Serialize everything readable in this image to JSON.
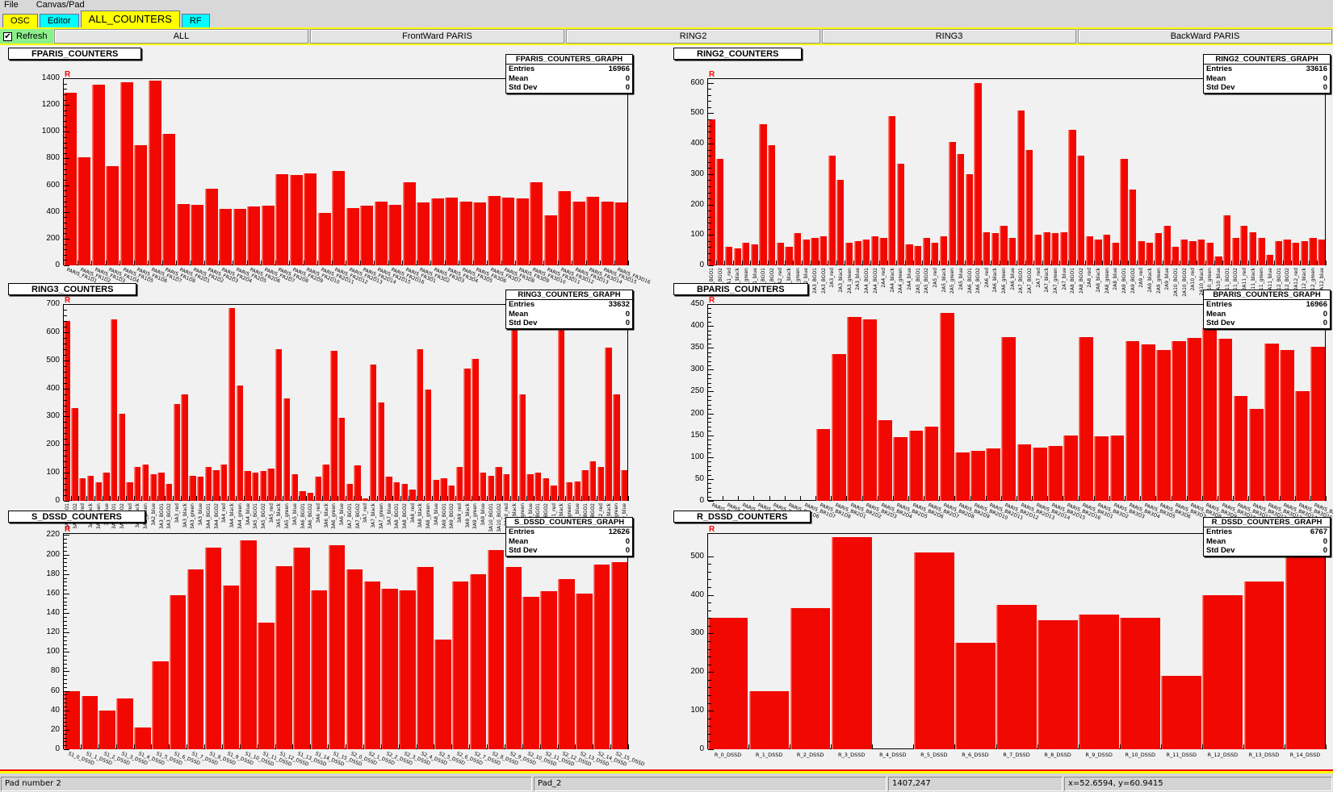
{
  "menu": {
    "items": [
      "File",
      "Canvas/Pad"
    ]
  },
  "tabs": [
    {
      "label": "OSC",
      "color": "#ffff00",
      "active": false
    },
    {
      "label": "Editor",
      "color": "#00ffff",
      "active": false
    },
    {
      "label": "ALL_COUNTERS",
      "color": "#ffff00",
      "active": true
    },
    {
      "label": "RF",
      "color": "#00ffff",
      "active": false
    }
  ],
  "toolbar": {
    "refresh_label": "Refresh",
    "refresh_checked": true,
    "buttons": [
      "ALL",
      "FrontWard PARIS",
      "RING2",
      "RING3",
      "BackWard PARIS"
    ]
  },
  "statusbar": {
    "cells": [
      "Pad number 2",
      "Pad_2",
      "1407,247",
      "x=52.6594, y=60.9415"
    ]
  },
  "colors": {
    "bar": "#f10800",
    "bar_highlight": "#ff7a70",
    "tab_yellow": "#ffff00",
    "tab_cyan": "#00ffff",
    "refresh_green": "#8cf08c",
    "pad_highlight_red": "#ff0000",
    "canvas_highlight_yellow": "#ffff00",
    "canvas_bg": "#f1f1f1"
  },
  "chart_data": [
    {
      "type": "bar",
      "title": "FPARIS_COUNTERS",
      "stats": {
        "title": "FPARIS_COUNTERS_GRAPH",
        "entries_label": "Entries",
        "entries": "16966",
        "mean_label": "Mean",
        "mean": "0",
        "stddev_label": "Std Dev",
        "stddev": "0"
      },
      "ylim": [
        0,
        1400
      ],
      "ytick_step": 200,
      "ytick_max": 1400,
      "ymax": 1400,
      "label_style": "slant",
      "grid": false,
      "categories": [
        "PARIS_FR1D1",
        "PARIS_FR1D2",
        "PARIS_FR1D3",
        "PARIS_FR1D4",
        "PARIS_FR1D5",
        "PARIS_FR1D6",
        "PARIS_FR1D7",
        "PARIS_FR1D8",
        "PARIS_FR2D1",
        "PARIS_FR2D2",
        "PARIS_FR2D3",
        "PARIS_FR2D4",
        "PARIS_FR2D5",
        "PARIS_FR2D6",
        "PARIS_FR2D7",
        "PARIS_FR2D8",
        "PARIS_FR2D9",
        "PARIS_FR2D10",
        "PARIS_FR2D11",
        "PARIS_FR2D12",
        "PARIS_FR2D13",
        "PARIS_FR2D14",
        "PARIS_FR2D15",
        "PARIS_FR2D16",
        "PARIS_FR3D1",
        "PARIS_FR3D2",
        "PARIS_FR3D3",
        "PARIS_FR3D4",
        "PARIS_FR3D5",
        "PARIS_FR3D6",
        "PARIS_FR3D7",
        "PARIS_FR3D8",
        "PARIS_FR3D9",
        "PARIS_FR3D10",
        "PARIS_FR3D11",
        "PARIS_FR3D12",
        "PARIS_FR3D13",
        "PARIS_FR3D14",
        "PARIS_FR3D15",
        "PARIS_FR3D16"
      ],
      "values": [
        1290,
        810,
        1350,
        745,
        1370,
        900,
        1380,
        985,
        460,
        450,
        575,
        420,
        425,
        440,
        445,
        680,
        675,
        690,
        390,
        705,
        430,
        445,
        475,
        450,
        620,
        470,
        500,
        505,
        480,
        470,
        520,
        510,
        500,
        620,
        375,
        555,
        480,
        515,
        475,
        470
      ]
    },
    {
      "type": "bar",
      "title": "RING2_COUNTERS",
      "stats": {
        "title": "RING2_COUNTERS_GRAPH",
        "entries_label": "Entries",
        "entries": "33616",
        "mean_label": "Mean",
        "mean": "0",
        "stddev_label": "Std Dev",
        "stddev": "0"
      },
      "ylim": [
        0,
        600
      ],
      "ytick_step": 100,
      "ytick_max": 600,
      "ymax": 615,
      "label_style": "vertical",
      "grid": false,
      "categories": [
        "2A1_BGO1",
        "2A1_BGO2",
        "2A1_red",
        "2A1_black",
        "2A1_green",
        "2A1_blue",
        "2A2_BGO1",
        "2A2_BGO2",
        "2A2_red",
        "2A2_black",
        "2A2_green",
        "2A2_blue",
        "2A3_BGO1",
        "2A3_BGO2",
        "2A3_red",
        "2A3_black",
        "2A3_green",
        "2A3_blue",
        "2A4_BGO1",
        "2A4_BGO2",
        "2A4_red",
        "2A4_black",
        "2A4_green",
        "2A4_blue",
        "2A5_BGO1",
        "2A5_BGO2",
        "2A5_red",
        "2A5_black",
        "2A5_green",
        "2A5_blue",
        "2A6_BGO1",
        "2A6_BGO2",
        "2A6_red",
        "2A6_black",
        "2A6_green",
        "2A6_blue",
        "2A7_BGO1",
        "2A7_BGO2",
        "2A7_red",
        "2A7_black",
        "2A7_green",
        "2A7_blue",
        "2A8_BGO1",
        "2A8_BGO2",
        "2A8_red",
        "2A8_black",
        "2A8_green",
        "2A8_blue",
        "2A9_BGO1",
        "2A9_BGO2",
        "2A9_red",
        "2A9_black",
        "2A9_green",
        "2A9_blue",
        "2A10_BGO1",
        "2A10_BGO2",
        "2A10_red",
        "2A10_black",
        "2A10_green",
        "2A10_blue",
        "2A11_BGO1",
        "2A11_BGO2",
        "2A11_red",
        "2A11_black",
        "2A11_green",
        "2A11_blue",
        "2A12_BGO1",
        "2A12_BGO2",
        "2A12_red",
        "2A12_black",
        "2A12_green",
        "2A12_blue"
      ],
      "values": [
        480,
        350,
        60,
        55,
        75,
        70,
        465,
        395,
        75,
        60,
        105,
        85,
        90,
        95,
        360,
        280,
        75,
        80,
        85,
        95,
        90,
        490,
        335,
        70,
        65,
        90,
        75,
        95,
        405,
        365,
        300,
        600,
        110,
        105,
        130,
        90,
        510,
        380,
        100,
        110,
        105,
        110,
        445,
        360,
        95,
        85,
        100,
        75,
        350,
        250,
        80,
        75,
        105,
        130,
        60,
        85,
        80,
        85,
        75,
        30,
        165,
        90,
        130,
        110,
        90,
        35,
        80,
        85,
        75,
        80,
        90,
        85
      ]
    },
    {
      "type": "bar",
      "title": "RING3_COUNTERS",
      "stats": {
        "title": "RING3_COUNTERS_GRAPH",
        "entries_label": "Entries",
        "entries": "33632",
        "mean_label": "Mean",
        "mean": "0",
        "stddev_label": "Std Dev",
        "stddev": "0"
      },
      "ylim": [
        0,
        700
      ],
      "ytick_step": 100,
      "ytick_max": 700,
      "ymax": 700,
      "label_style": "vertical",
      "grid": false,
      "categories": [
        "3A1_BGO1",
        "3A1_BGO2",
        "3A1_red",
        "3A1_black",
        "3A1_green",
        "3A1_blue",
        "3A2_BGO1",
        "3A2_BGO2",
        "3A2_red",
        "3A2_black",
        "3A2_green",
        "3A2_blue",
        "3A3_BGO1",
        "3A3_BGO2",
        "3A3_red",
        "3A3_black",
        "3A3_green",
        "3A3_blue",
        "3A4_BGO1",
        "3A4_BGO2",
        "3A4_red",
        "3A4_black",
        "3A4_green",
        "3A4_blue",
        "3A5_BGO1",
        "3A5_BGO2",
        "3A5_red",
        "3A5_black",
        "3A5_green",
        "3A5_blue",
        "3A6_BGO1",
        "3A6_BGO2",
        "3A6_red",
        "3A6_black",
        "3A6_green",
        "3A6_blue",
        "3A7_BGO1",
        "3A7_BGO2",
        "3A7_red",
        "3A7_black",
        "3A7_green",
        "3A7_blue",
        "3A8_BGO1",
        "3A8_BGO2",
        "3A8_red",
        "3A8_black",
        "3A8_green",
        "3A8_blue",
        "3A9_BGO1",
        "3A9_BGO2",
        "3A9_red",
        "3A9_black",
        "3A9_green",
        "3A9_blue",
        "3A10_BGO1",
        "3A10_BGO2",
        "3A10_red",
        "3A10_black",
        "3A10_green",
        "3A10_blue",
        "3A11_BGO1",
        "3A11_BGO2",
        "3A11_red",
        "3A11_black",
        "3A11_green",
        "3A11_blue",
        "3A12_BGO1",
        "3A12_BGO2",
        "3A12_red",
        "3A12_black",
        "3A12_green",
        "3A12_blue"
      ],
      "values": [
        640,
        330,
        80,
        90,
        65,
        100,
        645,
        310,
        65,
        120,
        130,
        95,
        100,
        60,
        345,
        380,
        90,
        85,
        120,
        110,
        130,
        685,
        410,
        105,
        100,
        105,
        115,
        540,
        365,
        95,
        35,
        30,
        85,
        130,
        535,
        295,
        60,
        125,
        10,
        485,
        350,
        85,
        65,
        60,
        40,
        540,
        395,
        75,
        80,
        55,
        120,
        470,
        505,
        100,
        90,
        120,
        95,
        670,
        380,
        95,
        100,
        80,
        55,
        625,
        65,
        70,
        110,
        140,
        120,
        545,
        380,
        110
      ]
    },
    {
      "type": "bar",
      "title": "BPARIS_COUNTERS",
      "stats": {
        "title": "BPARIS_COUNTERS_GRAPH",
        "entries_label": "Entries",
        "entries": "16966",
        "mean_label": "Mean",
        "mean": "0",
        "stddev_label": "Std Dev",
        "stddev": "0"
      },
      "ylim": [
        0,
        450
      ],
      "ytick_step": 50,
      "ytick_max": 450,
      "ymax": 450,
      "label_style": "slant",
      "grid": false,
      "categories": [
        "PARIS_BR1D1",
        "PARIS_BR1D2",
        "PARIS_BR1D3",
        "PARIS_BR1D4",
        "PARIS_BR1D5",
        "PARIS_BR1D6",
        "PARIS_BR1D7",
        "PARIS_BR1D8",
        "PARIS_BR2D1",
        "PARIS_BR2D2",
        "PARIS_BR2D3",
        "PARIS_BR2D4",
        "PARIS_BR2D5",
        "PARIS_BR2D6",
        "PARIS_BR2D7",
        "PARIS_BR2D8",
        "PARIS_BR2D9",
        "PARIS_BR2D10",
        "PARIS_BR2D11",
        "PARIS_BR2D12",
        "PARIS_BR2D13",
        "PARIS_BR2D14",
        "PARIS_BR2D15",
        "PARIS_BR2D16",
        "PARIS_BR3D1",
        "PARIS_BR3D2",
        "PARIS_BR3D3",
        "PARIS_BR3D4",
        "PARIS_BR3D5",
        "PARIS_BR3D6",
        "PARIS_BR3D7",
        "PARIS_BR3D8",
        "PARIS_BR3D9",
        "PARIS_BR3D10",
        "PARIS_BR3D11",
        "PARIS_BR3D12",
        "PARIS_BR3D13",
        "PARIS_BR3D14",
        "PARIS_BR3D15",
        "PARIS_BR3D16"
      ],
      "values": [
        0,
        0,
        0,
        0,
        0,
        0,
        0,
        165,
        335,
        420,
        415,
        185,
        145,
        160,
        170,
        430,
        110,
        115,
        120,
        375,
        130,
        122,
        125,
        150,
        375,
        148,
        150,
        365,
        358,
        345,
        365,
        372,
        395,
        370,
        240,
        210,
        360,
        345,
        250,
        352
      ]
    },
    {
      "type": "bar",
      "title": "S_DSSD_COUNTERS",
      "stats": {
        "title": "S_DSSD_COUNTERS_GRAPH",
        "entries_label": "Entries",
        "entries": "12626",
        "mean_label": "Mean",
        "mean": "0",
        "stddev_label": "Std Dev",
        "stddev": "0"
      },
      "ylim": [
        0,
        220
      ],
      "ytick_step": 20,
      "ytick_max": 220,
      "ymax": 222,
      "label_style": "slant",
      "grid": false,
      "categories": [
        "S1_0_DSSD",
        "S1_1_DSSD",
        "S1_2_DSSD",
        "S1_3_DSSD",
        "S1_4_DSSD",
        "S1_5_DSSD",
        "S1_6_DSSD",
        "S1_7_DSSD",
        "S1_8_DSSD",
        "S1_9_DSSD",
        "S1_10_DSSD",
        "S1_11_DSSD",
        "S1_12_DSSD",
        "S1_13_DSSD",
        "S1_14_DSSD",
        "S1_15_DSSD",
        "S2_0_DSSD",
        "S2_1_DSSD",
        "S2_2_DSSD",
        "S2_3_DSSD",
        "S2_4_DSSD",
        "S2_5_DSSD",
        "S2_6_DSSD",
        "S2_7_DSSD",
        "S2_8_DSSD",
        "S2_9_DSSD",
        "S2_10_DSSD",
        "S2_11_DSSD",
        "S2_12_DSSD",
        "S2_13_DSSD",
        "S2_14_DSSD",
        "S2_15_DSSD"
      ],
      "values": [
        60,
        55,
        40,
        52,
        22,
        90,
        158,
        185,
        207,
        168,
        215,
        130,
        188,
        207,
        163,
        210,
        185,
        172,
        165,
        163,
        187,
        113,
        172,
        180,
        205,
        187,
        157,
        162,
        175,
        160,
        190,
        192
      ]
    },
    {
      "type": "bar",
      "title": "R_DSSD_COUNTERS",
      "stats": {
        "title": "R_DSSD_COUNTERS_GRAPH",
        "entries_label": "Entries",
        "entries": "6767",
        "mean_label": "Mean",
        "mean": "0",
        "stddev_label": "Std Dev",
        "stddev": "0"
      },
      "ylim": [
        0,
        560
      ],
      "ytick_step": 100,
      "ytick_max": 500,
      "ymax": 560,
      "label_style": "horizontal",
      "grid": false,
      "categories": [
        "R_0_DSSD",
        "R_1_DSSD",
        "R_2_DSSD",
        "R_3_DSSD",
        "R_4_DSSD",
        "R_5_DSSD",
        "R_6_DSSD",
        "R_7_DSSD",
        "R_8_DSSD",
        "R_9_DSSD",
        "R_10_DSSD",
        "R_11_DSSD",
        "R_12_DSSD",
        "R_13_DSSD",
        "R_14_DSSD"
      ],
      "values": [
        340,
        150,
        365,
        550,
        0,
        510,
        275,
        375,
        335,
        350,
        340,
        190,
        400,
        435,
        550
      ]
    }
  ]
}
